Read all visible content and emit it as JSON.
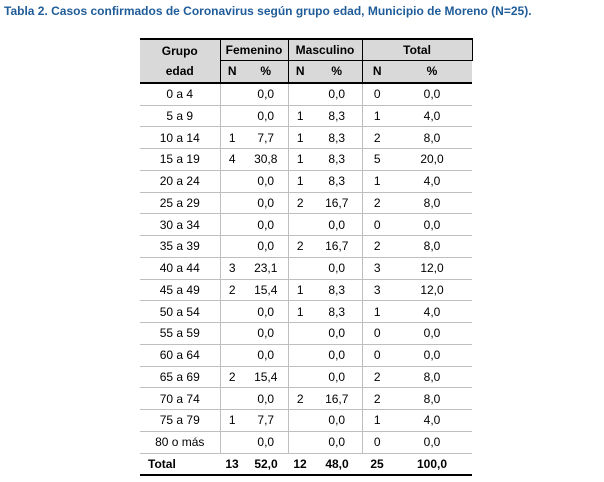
{
  "title": "Tabla 2. Casos confirmados de Coronavirus según grupo edad, Municipio de Moreno  (N=25).",
  "header": {
    "group_line1": "Grupo",
    "group_line2": "edad",
    "femenino": "Femenino",
    "masculino": "Masculino",
    "total": "Total",
    "n": "N",
    "pct": "%"
  },
  "rows": [
    {
      "age": "0 a 4",
      "f_n": "",
      "f_pct": "0,0",
      "m_n": "",
      "m_pct": "0,0",
      "t_n": "0",
      "t_pct": "0,0"
    },
    {
      "age": "5 a 9",
      "f_n": "",
      "f_pct": "0,0",
      "m_n": "1",
      "m_pct": "8,3",
      "t_n": "1",
      "t_pct": "4,0"
    },
    {
      "age": "10 a 14",
      "f_n": "1",
      "f_pct": "7,7",
      "m_n": "1",
      "m_pct": "8,3",
      "t_n": "2",
      "t_pct": "8,0"
    },
    {
      "age": "15 a 19",
      "f_n": "4",
      "f_pct": "30,8",
      "m_n": "1",
      "m_pct": "8,3",
      "t_n": "5",
      "t_pct": "20,0"
    },
    {
      "age": "20 a 24",
      "f_n": "",
      "f_pct": "0,0",
      "m_n": "1",
      "m_pct": "8,3",
      "t_n": "1",
      "t_pct": "4,0"
    },
    {
      "age": "25 a 29",
      "f_n": "",
      "f_pct": "0,0",
      "m_n": "2",
      "m_pct": "16,7",
      "t_n": "2",
      "t_pct": "8,0"
    },
    {
      "age": "30 a 34",
      "f_n": "",
      "f_pct": "0,0",
      "m_n": "",
      "m_pct": "0,0",
      "t_n": "0",
      "t_pct": "0,0"
    },
    {
      "age": "35 a 39",
      "f_n": "",
      "f_pct": "0,0",
      "m_n": "2",
      "m_pct": "16,7",
      "t_n": "2",
      "t_pct": "8,0"
    },
    {
      "age": "40 a 44",
      "f_n": "3",
      "f_pct": "23,1",
      "m_n": "",
      "m_pct": "0,0",
      "t_n": "3",
      "t_pct": "12,0"
    },
    {
      "age": "45 a 49",
      "f_n": "2",
      "f_pct": "15,4",
      "m_n": "1",
      "m_pct": "8,3",
      "t_n": "3",
      "t_pct": "12,0"
    },
    {
      "age": "50 a 54",
      "f_n": "",
      "f_pct": "0,0",
      "m_n": "1",
      "m_pct": "8,3",
      "t_n": "1",
      "t_pct": "4,0"
    },
    {
      "age": "55 a 59",
      "f_n": "",
      "f_pct": "0,0",
      "m_n": "",
      "m_pct": "0,0",
      "t_n": "0",
      "t_pct": "0,0"
    },
    {
      "age": "60 a 64",
      "f_n": "",
      "f_pct": "0,0",
      "m_n": "",
      "m_pct": "0,0",
      "t_n": "0",
      "t_pct": "0,0"
    },
    {
      "age": "65 a 69",
      "f_n": "2",
      "f_pct": "15,4",
      "m_n": "",
      "m_pct": "0,0",
      "t_n": "2",
      "t_pct": "8,0"
    },
    {
      "age": "70 a 74",
      "f_n": "",
      "f_pct": "0,0",
      "m_n": "2",
      "m_pct": "16,7",
      "t_n": "2",
      "t_pct": "8,0"
    },
    {
      "age": "75 a 79",
      "f_n": "1",
      "f_pct": "7,7",
      "m_n": "",
      "m_pct": "0,0",
      "t_n": "1",
      "t_pct": "4,0"
    },
    {
      "age": "80 o más",
      "f_n": "",
      "f_pct": "0,0",
      "m_n": "",
      "m_pct": "0,0",
      "t_n": "0",
      "t_pct": "0,0"
    }
  ],
  "total_row": {
    "label": "Total",
    "f_n": "13",
    "f_pct": "52,0",
    "m_n": "12",
    "m_pct": "48,0",
    "t_n": "25",
    "t_pct": "100,0"
  },
  "colors": {
    "title": "#1f5c99",
    "header_bg": "#d9d9d9"
  }
}
